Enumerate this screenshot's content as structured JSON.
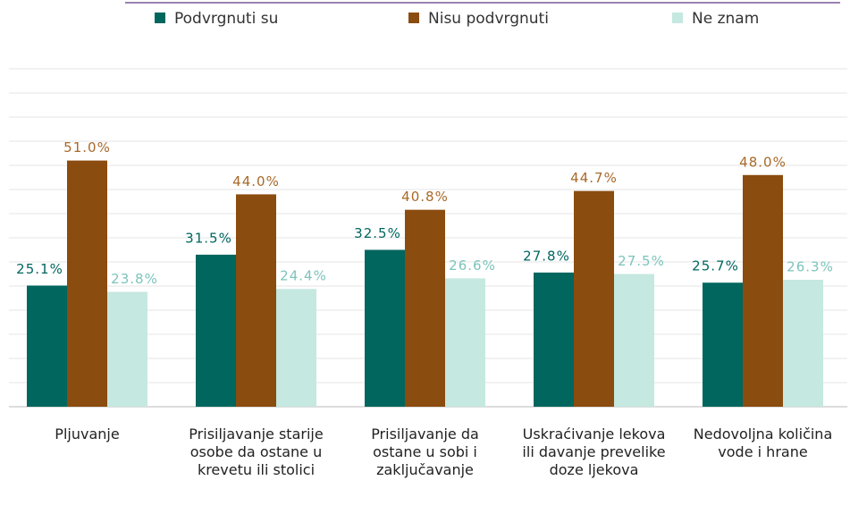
{
  "chart_data": {
    "type": "bar",
    "categories": [
      "Pljuvanje",
      "Prisiljavanje starije osobe da ostane u krevetu ili stolici",
      "Prisiljavanje da ostane u sobi i zaključavanje",
      "Uskraćivanje lekova ili davanje prevelike doze ljekova",
      "Nedovoljna količina vode i hrane"
    ],
    "series": [
      {
        "name": "Podvrgnuti su",
        "color": "#00665e",
        "values": [
          25.1,
          31.5,
          32.5,
          27.8,
          25.7
        ],
        "value_labels": [
          "25.1%",
          "31.5%",
          "32.5%",
          "27.8%",
          "25.7%"
        ]
      },
      {
        "name": "Nisu podvrgnuti",
        "color": "#8b4c0f",
        "values": [
          51.0,
          44.0,
          40.8,
          44.7,
          48.0
        ],
        "value_labels": [
          "51.0%",
          "44.0%",
          "40.8%",
          "44.7%",
          "48.0%"
        ]
      },
      {
        "name": "Ne znam",
        "color": "#c5e8e0",
        "values": [
          23.8,
          24.4,
          26.6,
          27.5,
          26.3
        ],
        "value_labels": [
          "23.8%",
          "24.4%",
          "26.6%",
          "27.5%",
          "26.3%"
        ]
      }
    ],
    "ylim": [
      0,
      70
    ],
    "yticks": [
      0,
      5,
      10,
      15,
      20,
      25,
      30,
      35,
      40,
      45,
      50,
      55,
      60,
      65,
      70
    ],
    "grid": true,
    "legend": "top"
  }
}
